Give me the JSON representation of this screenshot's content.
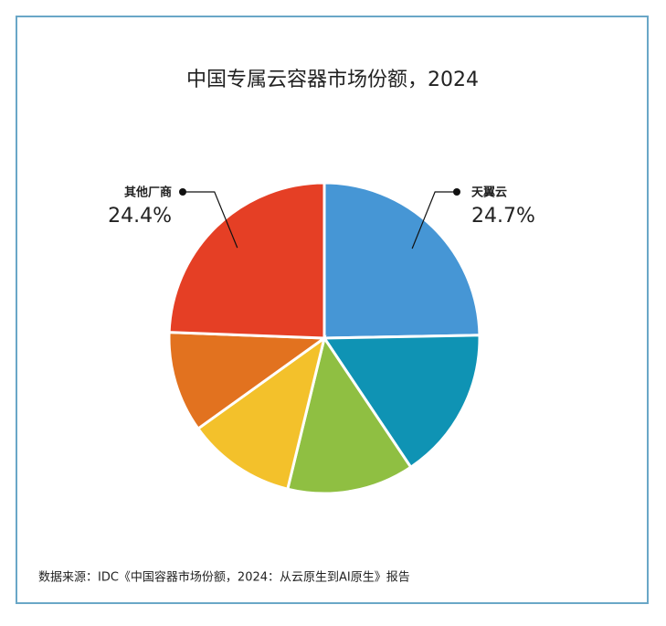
{
  "chart_data": {
    "type": "pie",
    "title": "中国专属云容器市场份额，2024",
    "categories": [
      "天翼云",
      null,
      null,
      null,
      null,
      "其他厂商"
    ],
    "values": [
      24.7,
      15.9,
      13.2,
      11.3,
      10.5,
      24.4
    ],
    "value_labels": [
      "24.7%",
      null,
      null,
      null,
      null,
      "24.4%"
    ],
    "colors": [
      "#4696d5",
      "#0f93b4",
      "#8fbf42",
      "#f3c12b",
      "#e2721f",
      "#e53f25"
    ],
    "source": "数据来源：IDC《中国容器市场份额，2024：从云原生到AI原生》报告"
  }
}
